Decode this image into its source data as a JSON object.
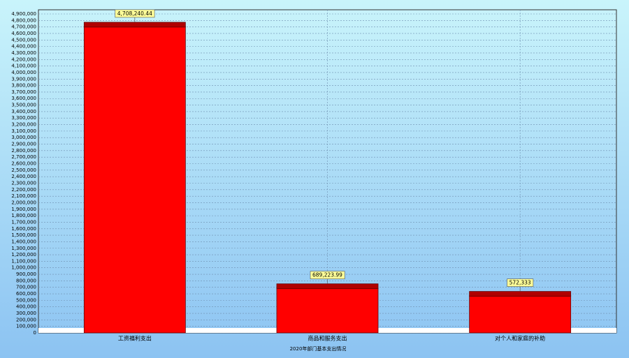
{
  "chart_data": {
    "type": "bar",
    "x_label": "2020年部门基本支出情况",
    "categories": [
      "工资福利支出",
      "商品和服务支出",
      "对个人和家庭的补助"
    ],
    "values": [
      4708240.44,
      689223.99,
      572333
    ],
    "value_labels": [
      "4,708,240.44",
      "689,223.99",
      "572,333"
    ],
    "color": "#ff0000",
    "ylim": [
      0,
      4900000
    ],
    "yticks": [
      0,
      {
        "value": 100000,
        "label": "100,000"
      },
      {
        "value": 200000,
        "label": "200,000"
      },
      {
        "value": 300000,
        "label": "300,000"
      },
      {
        "value": 400000,
        "label": "400,000"
      },
      {
        "value": 500000,
        "label": "500,000"
      },
      {
        "value": 600000,
        "label": "600,000"
      },
      {
        "value": 700000,
        "label": "700,000"
      },
      {
        "value": 800000,
        "label": "800,000"
      },
      {
        "value": 900000,
        "label": "900,000"
      },
      {
        "value": 1000000,
        "label": "1,000,000"
      },
      {
        "value": 1100000,
        "label": "1,100,000"
      },
      {
        "value": 1200000,
        "label": "1,200,000"
      },
      {
        "value": 1300000,
        "label": "1,300,000"
      },
      {
        "value": 1400000,
        "label": "1,400,000"
      },
      {
        "value": 1500000,
        "label": "1,500,000"
      },
      {
        "value": 1600000,
        "label": "1,600,000"
      },
      {
        "value": 1700000,
        "label": "1,700,000"
      },
      {
        "value": 1800000,
        "label": "1,800,000"
      },
      {
        "value": 1900000,
        "label": "1,900,000"
      },
      {
        "value": 2000000,
        "label": "2,000,000"
      },
      {
        "value": 2100000,
        "label": "2,100,000"
      },
      {
        "value": 2200000,
        "label": "2,200,000"
      },
      {
        "value": 2300000,
        "label": "2,300,000"
      },
      {
        "value": 2400000,
        "label": "2,400,000"
      },
      {
        "value": 2500000,
        "label": "2,500,000"
      },
      {
        "value": 2600000,
        "label": "2,600,000"
      },
      {
        "value": 2700000,
        "label": "2,700,000"
      },
      {
        "value": 2800000,
        "label": "2,800,000"
      },
      {
        "value": 2900000,
        "label": "2,900,000"
      },
      {
        "value": 3000000,
        "label": "3,000,000"
      },
      {
        "value": 3100000,
        "label": "3,100,000"
      },
      {
        "value": 3200000,
        "label": "3,200,000"
      },
      {
        "value": 3300000,
        "label": "3,300,000"
      },
      {
        "value": 3400000,
        "label": "3,400,000"
      },
      {
        "value": 3500000,
        "label": "3,500,000"
      },
      {
        "value": 3600000,
        "label": "3,600,000"
      },
      {
        "value": 3700000,
        "label": "3,700,000"
      },
      {
        "value": 3800000,
        "label": "3,800,000"
      },
      {
        "value": 3900000,
        "label": "3,900,000"
      },
      {
        "value": 4000000,
        "label": "4,000,000"
      },
      {
        "value": 4100000,
        "label": "4,100,000"
      },
      {
        "value": 4200000,
        "label": "4,200,000"
      },
      {
        "value": 4300000,
        "label": "4,300,000"
      },
      {
        "value": 4400000,
        "label": "4,400,000"
      },
      {
        "value": 4500000,
        "label": "4,500,000"
      },
      {
        "value": 4600000,
        "label": "4,600,000"
      },
      {
        "value": 4700000,
        "label": "4,700,000"
      },
      {
        "value": 4800000,
        "label": "4,800,000"
      },
      {
        "value": 4900000,
        "label": "4,900,000"
      }
    ],
    "grid": true
  }
}
